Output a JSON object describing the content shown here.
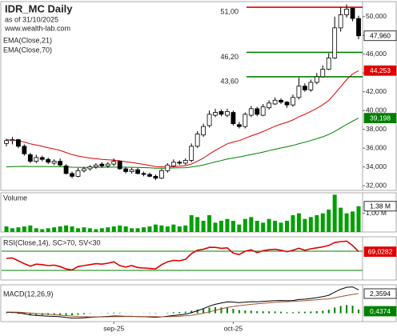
{
  "chart_data": [
    {
      "type": "candlestick",
      "title": "IDR_MC Daily",
      "subtitle": "as of 31/10/2025",
      "source": "www.wealth-lab.com",
      "categories": [
        null,
        null,
        null,
        null,
        null,
        null,
        null,
        null,
        null,
        null,
        null,
        null,
        null,
        null,
        null,
        null,
        null,
        null,
        "sep-25",
        null,
        null,
        null,
        null,
        null,
        null,
        null,
        null,
        null,
        null,
        null,
        null,
        null,
        null,
        null,
        null,
        null,
        null,
        null,
        "oct-25",
        null,
        null,
        null,
        null,
        null,
        null,
        null,
        null,
        null,
        null,
        null,
        null,
        null,
        null,
        null,
        null,
        null,
        null,
        null,
        null,
        null
      ],
      "open": [
        36.5,
        36.8,
        36.9,
        36.2,
        35.3,
        34.6,
        35.0,
        34.8,
        34.4,
        34.6,
        34.1,
        33.3,
        33.0,
        33.6,
        33.8,
        34.0,
        34.3,
        34.1,
        34.3,
        34.6,
        33.8,
        33.5,
        33.7,
        33.3,
        33.2,
        33.0,
        32.8,
        33.6,
        34.1,
        34.5,
        34.4,
        34.7,
        36.2,
        37.4,
        38.4,
        39.5,
        39.9,
        39.5,
        39.8,
        38.5,
        38.3,
        39.5,
        40.2,
        39.5,
        40.3,
        40.7,
        41.1,
        40.9,
        40.6,
        41.4,
        42.6,
        42.2,
        43.0,
        43.6,
        44.4,
        45.6,
        48.8,
        50.2,
        50.9,
        49.8
      ],
      "high": [
        37.0,
        37.2,
        37.0,
        36.4,
        35.5,
        35.3,
        35.2,
        35.0,
        34.8,
        34.9,
        34.3,
        33.5,
        33.9,
        34.0,
        34.2,
        34.4,
        34.5,
        34.5,
        34.9,
        34.7,
        34.0,
        33.9,
        33.9,
        33.5,
        33.4,
        33.2,
        33.8,
        34.4,
        34.8,
        34.7,
        34.9,
        36.5,
        37.8,
        38.6,
        40.0,
        40.2,
        40.1,
        40.2,
        40.0,
        38.8,
        39.8,
        40.5,
        40.4,
        40.7,
        41.1,
        41.4,
        41.3,
        41.0,
        41.7,
        43.5,
        42.9,
        43.3,
        44.0,
        44.8,
        46.1,
        50.0,
        51.0,
        51.3,
        50.9,
        50.1
      ],
      "low": [
        36.2,
        36.4,
        36.0,
        35.2,
        34.4,
        34.4,
        34.6,
        34.3,
        34.2,
        34.0,
        33.2,
        32.8,
        32.9,
        33.4,
        33.6,
        33.8,
        33.9,
        33.9,
        34.1,
        33.7,
        33.3,
        33.3,
        33.2,
        33.0,
        32.9,
        32.6,
        32.7,
        33.4,
        34.0,
        34.2,
        34.2,
        34.5,
        36.0,
        37.2,
        38.2,
        39.3,
        39.4,
        39.3,
        38.4,
        38.1,
        38.1,
        39.3,
        39.4,
        39.4,
        40.1,
        40.6,
        40.7,
        40.3,
        40.4,
        41.2,
        42.0,
        42.0,
        42.8,
        43.5,
        44.3,
        45.5,
        48.4,
        49.9,
        49.5,
        47.6
      ],
      "close": [
        36.8,
        36.9,
        36.2,
        35.4,
        34.6,
        35.0,
        34.8,
        34.5,
        34.6,
        34.2,
        33.3,
        33.0,
        33.6,
        33.8,
        34.0,
        34.2,
        34.1,
        34.3,
        34.6,
        33.8,
        33.5,
        33.7,
        33.3,
        33.2,
        33.0,
        32.8,
        33.6,
        34.2,
        34.5,
        34.4,
        34.7,
        36.2,
        37.5,
        38.3,
        39.6,
        39.8,
        39.6,
        39.9,
        38.6,
        38.3,
        39.6,
        40.2,
        39.6,
        40.4,
        40.8,
        41.1,
        40.9,
        40.6,
        41.4,
        42.6,
        42.2,
        43.0,
        43.6,
        44.4,
        45.6,
        48.8,
        50.2,
        50.8,
        49.8,
        47.96
      ],
      "close_label": "47,960",
      "up_color": "#ffffff",
      "down_color": "#000000",
      "series": [
        {
          "name": "EMA(Close,21)",
          "color": "#e00000",
          "last_label": "44,253",
          "values": [
            36.9,
            36.85,
            36.78,
            36.65,
            36.46,
            36.33,
            36.19,
            36.04,
            35.91,
            35.76,
            35.54,
            35.31,
            35.16,
            35.04,
            34.94,
            34.87,
            34.8,
            34.75,
            34.73,
            34.65,
            34.55,
            34.47,
            34.37,
            34.27,
            34.16,
            34.04,
            34.0,
            34.01,
            34.04,
            34.07,
            34.13,
            34.31,
            34.6,
            34.94,
            35.37,
            35.77,
            36.12,
            36.46,
            36.65,
            36.8,
            37.05,
            37.3,
            37.51,
            37.77,
            38.05,
            38.33,
            38.56,
            38.75,
            39.0,
            39.34,
            39.6,
            39.91,
            40.24,
            40.62,
            41.08,
            41.78,
            42.54,
            43.3,
            43.89,
            44.253
          ]
        },
        {
          "name": "EMA(Close,70)",
          "color": "#008000",
          "last_label": "39,198",
          "values": [
            34.0,
            34.03,
            34.05,
            34.06,
            34.05,
            34.05,
            34.05,
            34.04,
            34.04,
            34.03,
            34.0,
            33.97,
            33.96,
            33.95,
            33.95,
            33.96,
            33.96,
            33.97,
            33.98,
            33.98,
            33.97,
            33.96,
            33.95,
            33.93,
            33.9,
            33.87,
            33.86,
            33.87,
            33.89,
            33.9,
            33.92,
            33.99,
            34.09,
            34.21,
            34.37,
            34.53,
            34.68,
            34.84,
            34.95,
            35.05,
            35.18,
            35.32,
            35.44,
            35.58,
            35.73,
            35.88,
            36.02,
            36.14,
            36.29,
            36.47,
            36.63,
            36.81,
            37.0,
            37.21,
            37.45,
            37.78,
            38.15,
            38.53,
            38.87,
            39.198
          ]
        }
      ],
      "levels": [
        {
          "value": 51,
          "label": "51,00",
          "color": "#e00000"
        },
        {
          "value": 46.2,
          "label": "46,20",
          "color": "#008000"
        },
        {
          "value": 43.6,
          "label": "43,60",
          "color": "#008000"
        }
      ],
      "ylim": [
        31.5,
        51.6
      ],
      "yticks": [
        {
          "value": 32,
          "label": "32,000"
        },
        {
          "value": 34,
          "label": "34,000"
        },
        {
          "value": 36,
          "label": "36,000"
        },
        {
          "value": 38,
          "label": "38,000"
        },
        {
          "value": 40,
          "label": "40,000"
        },
        {
          "value": 42,
          "label": "42,000"
        },
        {
          "value": 44,
          "label": "44,000"
        },
        {
          "value": 46,
          "label": "46,000"
        },
        {
          "value": 48,
          "label": "48,000"
        },
        {
          "value": 50,
          "label": "50,000"
        }
      ]
    },
    {
      "type": "bar",
      "title": "Volume",
      "color": "#00a000",
      "last_label": "1,38 M",
      "values": [
        300000,
        200000,
        250000,
        300000,
        350000,
        200000,
        150000,
        200000,
        250000,
        300000,
        350000,
        300000,
        200000,
        250000,
        200000,
        150000,
        200000,
        250000,
        300000,
        350000,
        300000,
        200000,
        200000,
        250000,
        300000,
        400000,
        350000,
        300000,
        400000,
        300000,
        350000,
        900000,
        800000,
        600000,
        900000,
        500000,
        600000,
        700000,
        600000,
        400000,
        700000,
        800000,
        600000,
        500000,
        700000,
        600000,
        500000,
        600000,
        900000,
        1000000,
        700000,
        800000,
        900000,
        1000000,
        1200000,
        2000000,
        1300000,
        1000000,
        1100000,
        1380000
      ],
      "ylim": [
        0,
        2100000
      ],
      "yticks": [
        {
          "value": 1000000,
          "label": "1,00 M"
        }
      ]
    },
    {
      "type": "line",
      "title": "RSI(Close,14), SC>70, SV<30",
      "color": "#e00000",
      "last_label": "69,0282",
      "values": [
        55,
        56,
        50,
        44,
        39,
        43,
        42,
        40,
        41,
        38,
        33,
        31,
        38,
        40,
        42,
        44,
        43,
        45,
        48,
        40,
        37,
        40,
        36,
        35,
        34,
        33,
        42,
        48,
        51,
        50,
        53,
        65,
        72,
        74,
        78,
        78,
        76,
        77,
        66,
        63,
        70,
        73,
        67,
        71,
        73,
        74,
        72,
        69,
        72,
        76,
        72,
        75,
        77,
        79,
        82,
        88,
        90,
        91,
        82,
        69.0282
      ],
      "levels": [
        70,
        30
      ],
      "level_color": "#008000",
      "ylim": [
        10,
        100
      ]
    },
    {
      "type": "macd",
      "title": "MACD(12,26,9)",
      "macd": {
        "color": "#000000",
        "values": [
          0.1,
          0.1,
          0.05,
          -0.05,
          -0.2,
          -0.25,
          -0.3,
          -0.35,
          -0.38,
          -0.42,
          -0.5,
          -0.58,
          -0.58,
          -0.55,
          -0.5,
          -0.45,
          -0.42,
          -0.38,
          -0.33,
          -0.34,
          -0.37,
          -0.37,
          -0.4,
          -0.42,
          -0.45,
          -0.48,
          -0.44,
          -0.36,
          -0.27,
          -0.2,
          -0.12,
          0.06,
          0.3,
          0.55,
          0.85,
          1.07,
          1.22,
          1.35,
          1.33,
          1.28,
          1.32,
          1.38,
          1.37,
          1.42,
          1.47,
          1.52,
          1.53,
          1.5,
          1.53,
          1.64,
          1.68,
          1.76,
          1.86,
          1.98,
          2.15,
          2.52,
          2.86,
          3.1,
          3.15,
          2.7968
        ]
      },
      "signal": {
        "color": "#a0522d",
        "last_label": "2,3594",
        "values": [
          0.15,
          0.14,
          0.12,
          0.09,
          0.03,
          -0.03,
          -0.08,
          -0.13,
          -0.18,
          -0.23,
          -0.28,
          -0.34,
          -0.39,
          -0.42,
          -0.44,
          -0.44,
          -0.44,
          -0.43,
          -0.41,
          -0.4,
          -0.39,
          -0.39,
          -0.39,
          -0.4,
          -0.41,
          -0.42,
          -0.43,
          -0.42,
          -0.39,
          -0.35,
          -0.31,
          -0.24,
          -0.13,
          0.0,
          0.17,
          0.35,
          0.52,
          0.69,
          0.81,
          0.9,
          0.99,
          1.07,
          1.13,
          1.19,
          1.25,
          1.31,
          1.35,
          1.38,
          1.41,
          1.46,
          1.5,
          1.55,
          1.61,
          1.68,
          1.72,
          1.84,
          1.98,
          2.12,
          2.25,
          2.3594
        ]
      },
      "histogram": {
        "color": "#008000",
        "last_label": "0,4374",
        "values": [
          -0.05,
          -0.04,
          -0.07,
          -0.14,
          -0.23,
          -0.22,
          -0.22,
          -0.22,
          -0.2,
          -0.19,
          -0.22,
          -0.24,
          -0.19,
          -0.13,
          -0.06,
          -0.01,
          0.02,
          0.05,
          0.08,
          0.06,
          0.02,
          0.02,
          -0.01,
          -0.02,
          -0.04,
          -0.06,
          -0.01,
          0.06,
          0.12,
          0.15,
          0.19,
          0.3,
          0.43,
          0.55,
          0.68,
          0.72,
          0.7,
          0.66,
          0.52,
          0.38,
          0.33,
          0.31,
          0.24,
          0.23,
          0.22,
          0.21,
          0.18,
          0.12,
          0.12,
          0.18,
          0.18,
          0.21,
          0.25,
          0.3,
          0.43,
          0.68,
          0.88,
          0.98,
          0.9,
          0.4374
        ]
      },
      "ylim": [
        -1,
        3.4
      ]
    }
  ]
}
